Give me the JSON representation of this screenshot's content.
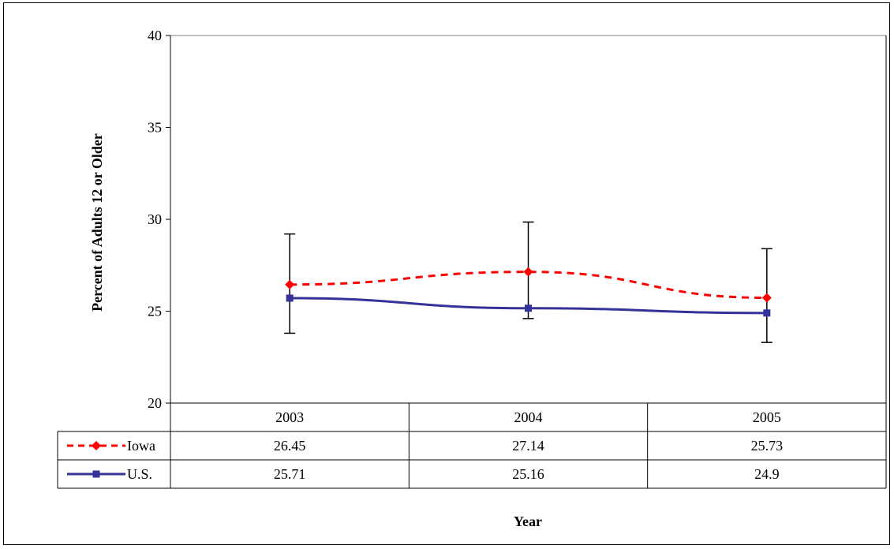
{
  "chart_data": {
    "type": "line",
    "title": "",
    "xlabel": "Year",
    "ylabel": "Percent of Adults 12 or Older",
    "ylim": [
      20,
      40
    ],
    "yticks": [
      20,
      25,
      30,
      35,
      40
    ],
    "categories": [
      "2003",
      "2004",
      "2005"
    ],
    "grid": false,
    "legend": "data-table",
    "series": [
      {
        "name": "Iowa",
        "values": [
          26.45,
          27.14,
          25.73
        ],
        "value_labels": [
          "26.45",
          "27.14",
          "25.73"
        ],
        "color": "#ff0000",
        "line_style": "dashed",
        "marker": "diamond",
        "error_low": [
          23.8,
          24.6,
          23.3
        ],
        "error_high": [
          29.2,
          29.85,
          28.4
        ]
      },
      {
        "name": "U.S.",
        "values": [
          25.71,
          25.16,
          24.9
        ],
        "value_labels": [
          "25.71",
          "25.16",
          "24.9"
        ],
        "color": "#333399",
        "line_style": "solid",
        "marker": "square"
      }
    ]
  }
}
